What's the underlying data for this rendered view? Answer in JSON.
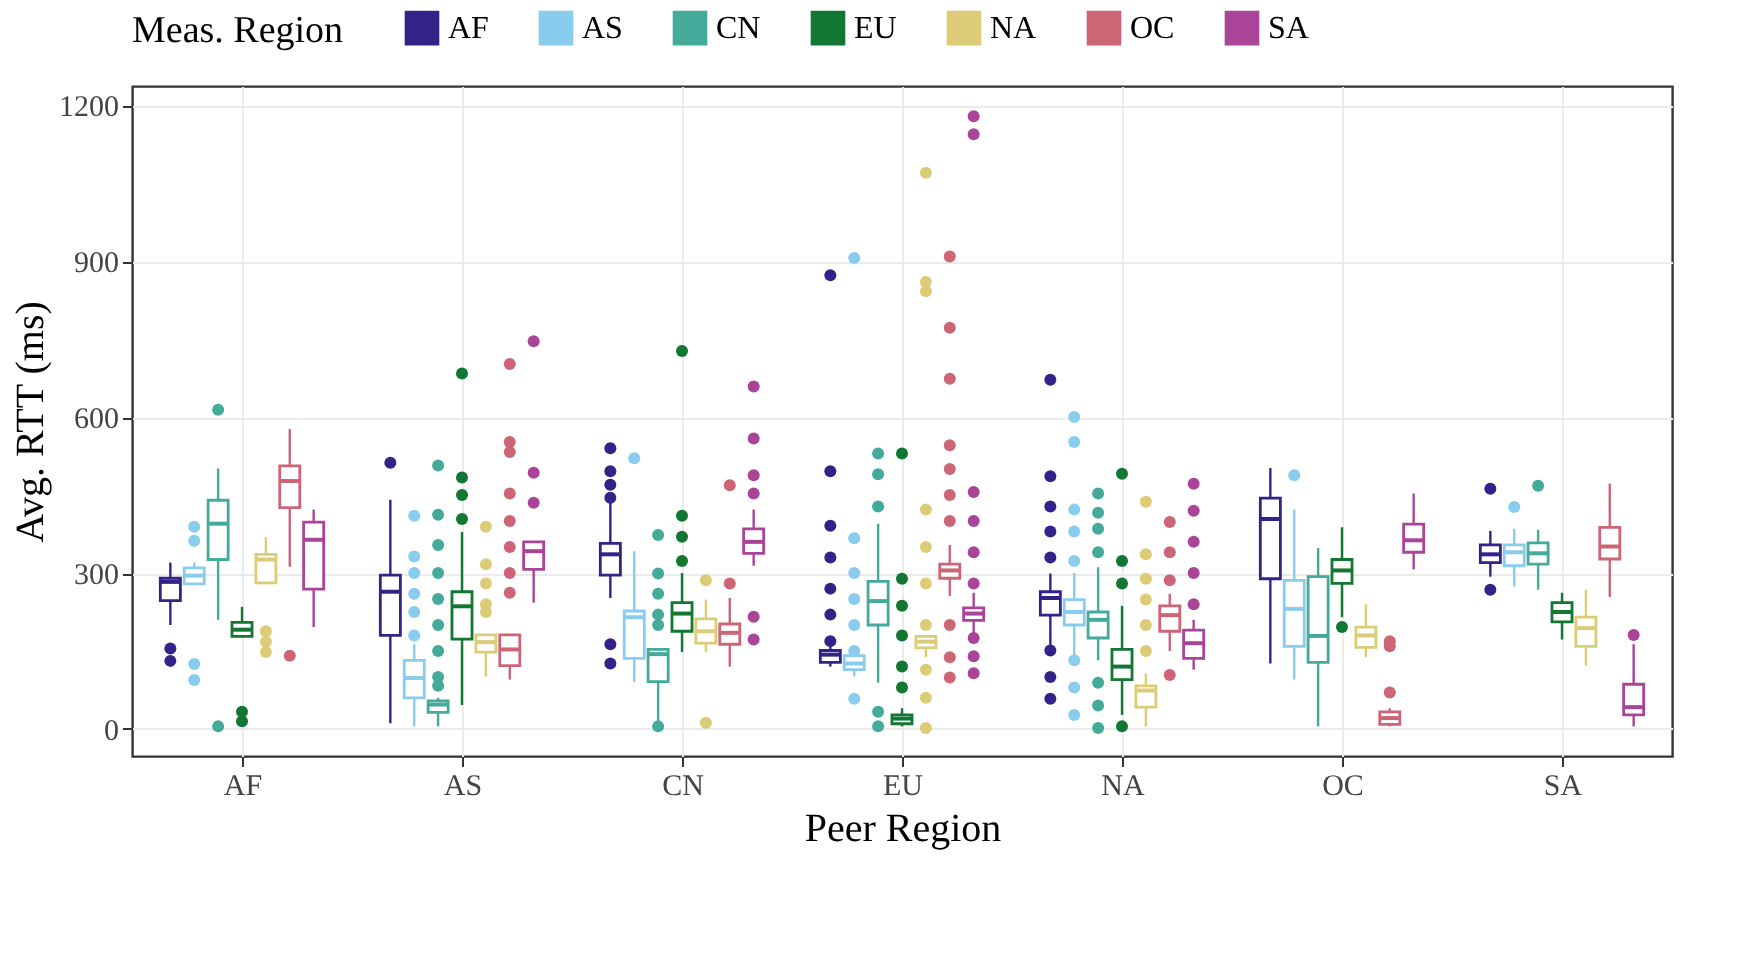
{
  "chart_data": {
    "type": "box",
    "xlabel": "Peer Region",
    "ylabel": "Avg. RTT (ms)",
    "legend_title": "Meas. Region",
    "legend": "top",
    "grid": true,
    "ylim": [
      -52,
      1237
    ],
    "yticks": [
      0,
      300,
      600,
      900,
      1200
    ],
    "categories": [
      "AF",
      "AS",
      "CN",
      "EU",
      "NA",
      "OC",
      "SA"
    ],
    "series": [
      {
        "name": "AF",
        "color": "#332288",
        "boxes": [
          {
            "low": 200,
            "q1": 247,
            "median": 283,
            "q3": 290,
            "high": 320,
            "outliers": [
              155,
              131
            ]
          },
          {
            "low": 11,
            "q1": 180,
            "median": 264,
            "q3": 296,
            "high": 441,
            "outliers": [
              512
            ]
          },
          {
            "low": 252,
            "q1": 296,
            "median": 336,
            "q3": 357,
            "high": 435,
            "outliers": [
              540,
              496,
              470,
              445,
              163,
              126
            ]
          },
          {
            "low": 120,
            "q1": 128,
            "median": 143,
            "q3": 151,
            "high": 165,
            "outliers": [
              873,
              496,
              391,
              330,
              270,
              220,
              169
            ]
          },
          {
            "low": 157,
            "q1": 219,
            "median": 252,
            "q3": 264,
            "high": 299,
            "outliers": [
              672,
              486,
              428,
              380,
              330,
              151,
              100,
              58
            ]
          },
          {
            "low": 126,
            "q1": 289,
            "median": 404,
            "q3": 444,
            "high": 502
          },
          {
            "low": 293,
            "q1": 320,
            "median": 336,
            "q3": 354,
            "high": 381,
            "outliers": [
              462,
              268
            ]
          }
        ]
      },
      {
        "name": "AS",
        "color": "#88ccee",
        "boxes": [
          {
            "low": 279,
            "q1": 279,
            "median": 295,
            "q3": 310,
            "high": 320,
            "outliers": [
              389,
              362,
              125,
              94
            ]
          },
          {
            "low": 5,
            "q1": 60,
            "median": 98,
            "q3": 132,
            "high": 163,
            "outliers": [
              410,
              332,
              300,
              260,
              225,
              180
            ]
          },
          {
            "low": 91,
            "q1": 136,
            "median": 215,
            "q3": 227,
            "high": 342,
            "outliers": [
              521
            ]
          },
          {
            "low": 101,
            "q1": 114,
            "median": 126,
            "q3": 141,
            "high": 141,
            "outliers": [
              906,
              367,
              300,
              250,
              200,
              150,
              58
            ]
          },
          {
            "low": 132,
            "q1": 200,
            "median": 225,
            "q3": 249,
            "high": 300,
            "outliers": [
              600,
              552,
              422,
              380,
              323,
              132,
              80,
              27
            ]
          },
          {
            "low": 95,
            "q1": 159,
            "median": 231,
            "q3": 286,
            "high": 422,
            "outliers": [
              488
            ]
          },
          {
            "low": 274,
            "q1": 314,
            "median": 340,
            "q3": 354,
            "high": 385,
            "outliers": [
              427
            ]
          }
        ]
      },
      {
        "name": "CN",
        "color": "#44aa99",
        "boxes": [
          {
            "low": 210,
            "q1": 326,
            "median": 395,
            "q3": 440,
            "high": 501,
            "outliers": [
              614,
              5
            ]
          },
          {
            "low": 5,
            "q1": 32,
            "median": 47,
            "q3": 54,
            "high": 60,
            "outliers": [
              507,
              412,
              354,
              300,
              250,
              200,
              150,
              100,
              83
            ]
          },
          {
            "low": 15,
            "q1": 91,
            "median": 144,
            "q3": 153,
            "high": 153,
            "outliers": [
              373,
              299,
              260,
              220,
              200,
              5
            ]
          },
          {
            "low": 89,
            "q1": 200,
            "median": 246,
            "q3": 284,
            "high": 395,
            "outliers": [
              530,
              490,
              428,
              33,
              5
            ]
          },
          {
            "low": 132,
            "q1": 175,
            "median": 210,
            "q3": 225,
            "high": 311,
            "outliers": [
              453,
              416,
              385,
              340,
              89,
              45,
              2
            ]
          },
          {
            "low": 5,
            "q1": 128,
            "median": 179,
            "q3": 293,
            "high": 348
          },
          {
            "low": 268,
            "q1": 317,
            "median": 338,
            "q3": 358,
            "high": 383,
            "outliers": [
              468
            ]
          }
        ]
      },
      {
        "name": "EU",
        "color": "#117733",
        "boxes": [
          {
            "low": 178,
            "q1": 178,
            "median": 191,
            "q3": 205,
            "high": 235,
            "outliers": [
              33,
              15
            ]
          },
          {
            "low": 46,
            "q1": 173,
            "median": 236,
            "q3": 264,
            "high": 379,
            "outliers": [
              684,
              484,
              450,
              404
            ]
          },
          {
            "low": 148,
            "q1": 188,
            "median": 222,
            "q3": 243,
            "high": 300,
            "outliers": [
              727,
              410,
              370,
              323
            ]
          },
          {
            "low": 5,
            "q1": 10,
            "median": 20,
            "q3": 27,
            "high": 40,
            "outliers": [
              530,
              289,
              237,
              180,
              120,
              80
            ]
          },
          {
            "low": 27,
            "q1": 95,
            "median": 120,
            "q3": 153,
            "high": 237,
            "outliers": [
              491,
              323,
              280,
              5
            ]
          },
          {
            "low": 215,
            "q1": 280,
            "median": 305,
            "q3": 326,
            "high": 388,
            "outliers": [
              196
            ]
          },
          {
            "low": 172,
            "q1": 206,
            "median": 225,
            "q3": 243,
            "high": 262
          }
        ]
      },
      {
        "name": "NA",
        "color": "#ddcc77",
        "boxes": [
          {
            "low": 281,
            "q1": 281,
            "median": 326,
            "q3": 336,
            "high": 369,
            "outliers": [
              188,
              168,
              148
            ]
          },
          {
            "low": 101,
            "q1": 148,
            "median": 167,
            "q3": 181,
            "high": 181,
            "outliers": [
              389,
              317,
              280,
              240,
              225
            ]
          },
          {
            "low": 148,
            "q1": 165,
            "median": 188,
            "q3": 212,
            "high": 249,
            "outliers": [
              286,
              12
            ]
          },
          {
            "low": 138,
            "q1": 156,
            "median": 168,
            "q3": 178,
            "high": 178,
            "outliers": [
              1070,
              860,
              842,
              422,
              350,
              280,
              200,
              114,
              60,
              2
            ]
          },
          {
            "low": 5,
            "q1": 42,
            "median": 74,
            "q3": 83,
            "high": 107,
            "outliers": [
              437,
              336,
              289,
              249,
              200,
              150
            ]
          },
          {
            "low": 138,
            "q1": 157,
            "median": 180,
            "q3": 196,
            "high": 240
          },
          {
            "low": 122,
            "q1": 159,
            "median": 194,
            "q3": 215,
            "high": 268
          }
        ]
      },
      {
        "name": "OC",
        "color": "#cc6677",
        "boxes": [
          {
            "low": 312,
            "q1": 426,
            "median": 477,
            "q3": 506,
            "high": 577,
            "outliers": [
              141
            ]
          },
          {
            "low": 95,
            "q1": 122,
            "median": 153,
            "q3": 181,
            "high": 181,
            "outliers": [
              702,
              552,
              533,
              453,
              400,
              350,
              300,
              262
            ]
          },
          {
            "low": 120,
            "q1": 163,
            "median": 185,
            "q3": 202,
            "high": 252,
            "outliers": [
              469,
              280
            ]
          },
          {
            "low": 256,
            "q1": 290,
            "median": 305,
            "q3": 317,
            "high": 354,
            "outliers": [
              909,
              772,
              674,
              546,
              500,
              450,
              400,
              200,
              138,
              99
            ]
          },
          {
            "low": 150,
            "q1": 188,
            "median": 219,
            "q3": 237,
            "high": 260,
            "outliers": [
              398,
              340,
              286,
              104
            ]
          },
          {
            "low": 5,
            "q1": 9,
            "median": 21,
            "q3": 33,
            "high": 40,
            "outliers": [
              169,
              159,
              70
            ]
          },
          {
            "low": 254,
            "q1": 327,
            "median": 351,
            "q3": 388,
            "high": 472
          }
        ]
      },
      {
        "name": "SA",
        "color": "#aa4499",
        "boxes": [
          {
            "low": 196,
            "q1": 269,
            "median": 364,
            "q3": 398,
            "high": 422
          },
          {
            "low": 243,
            "q1": 307,
            "median": 342,
            "q3": 360,
            "high": 360,
            "outliers": [
              746,
              493,
              435
            ]
          },
          {
            "low": 314,
            "q1": 338,
            "median": 360,
            "q3": 385,
            "high": 422,
            "outliers": [
              659,
              559,
              488,
              453,
              216,
              172
            ]
          },
          {
            "low": 184,
            "q1": 209,
            "median": 222,
            "q3": 233,
            "high": 262,
            "outliers": [
              1179,
              1144,
              456,
              400,
              340,
              280,
              175,
              140,
              107
            ]
          },
          {
            "low": 114,
            "q1": 136,
            "median": 165,
            "q3": 190,
            "high": 210,
            "outliers": [
              472,
              420,
              360,
              300,
              240
            ]
          },
          {
            "low": 307,
            "q1": 340,
            "median": 363,
            "q3": 394,
            "high": 453
          },
          {
            "low": 5,
            "q1": 27,
            "median": 42,
            "q3": 86,
            "high": 163,
            "outliers": [
              181
            ]
          }
        ]
      }
    ]
  }
}
